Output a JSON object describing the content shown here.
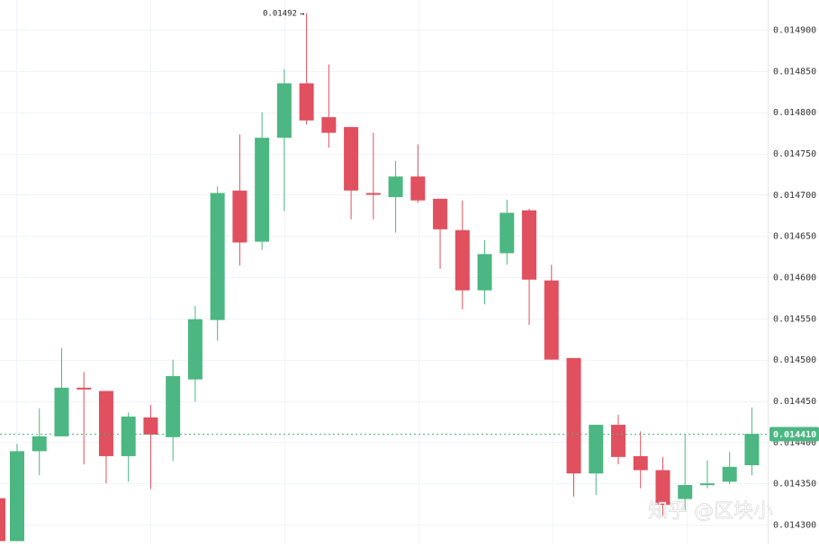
{
  "chart_data": {
    "type": "candlestick",
    "ylim": [
      0.01428,
      0.01492
    ],
    "y_ticks": [
      "0.014900",
      "0.014850",
      "0.014800",
      "0.014750",
      "0.014700",
      "0.014650",
      "0.014600",
      "0.014550",
      "0.014500",
      "0.014450",
      "0.014400",
      "0.014350",
      "0.014300"
    ],
    "candles": [
      {
        "o": 0.014332,
        "h": 0.014332,
        "l": 0.01428,
        "c": 0.01428
      },
      {
        "o": 0.01428,
        "h": 0.014398,
        "l": 0.01428,
        "c": 0.014389
      },
      {
        "o": 0.014389,
        "h": 0.014441,
        "l": 0.01436,
        "c": 0.014407
      },
      {
        "o": 0.014407,
        "h": 0.014514,
        "l": 0.014407,
        "c": 0.014466
      },
      {
        "o": 0.014466,
        "h": 0.014485,
        "l": 0.014373,
        "c": 0.014464
      },
      {
        "o": 0.014462,
        "h": 0.014462,
        "l": 0.01435,
        "c": 0.014383
      },
      {
        "o": 0.014383,
        "h": 0.014436,
        "l": 0.014352,
        "c": 0.014431
      },
      {
        "o": 0.01443,
        "h": 0.014445,
        "l": 0.014343,
        "c": 0.014409
      },
      {
        "o": 0.014406,
        "h": 0.0145,
        "l": 0.014377,
        "c": 0.01448
      },
      {
        "o": 0.014476,
        "h": 0.014565,
        "l": 0.014449,
        "c": 0.014549
      },
      {
        "o": 0.014548,
        "h": 0.01471,
        "l": 0.014523,
        "c": 0.014702
      },
      {
        "o": 0.014705,
        "h": 0.014773,
        "l": 0.014614,
        "c": 0.014642
      },
      {
        "o": 0.014643,
        "h": 0.0148,
        "l": 0.014633,
        "c": 0.014769
      },
      {
        "o": 0.014769,
        "h": 0.014852,
        "l": 0.01468,
        "c": 0.014835
      },
      {
        "o": 0.014835,
        "h": 0.01492,
        "l": 0.014785,
        "c": 0.01479
      },
      {
        "o": 0.014794,
        "h": 0.014858,
        "l": 0.014757,
        "c": 0.014775
      },
      {
        "o": 0.014782,
        "h": 0.014782,
        "l": 0.01467,
        "c": 0.014705
      },
      {
        "o": 0.014702,
        "h": 0.014775,
        "l": 0.01467,
        "c": 0.0147
      },
      {
        "o": 0.014697,
        "h": 0.014741,
        "l": 0.014654,
        "c": 0.014722
      },
      {
        "o": 0.014722,
        "h": 0.014761,
        "l": 0.01469,
        "c": 0.014693
      },
      {
        "o": 0.014695,
        "h": 0.014695,
        "l": 0.01461,
        "c": 0.014658
      },
      {
        "o": 0.014657,
        "h": 0.014693,
        "l": 0.014561,
        "c": 0.014584
      },
      {
        "o": 0.014584,
        "h": 0.014645,
        "l": 0.014567,
        "c": 0.014628
      },
      {
        "o": 0.014629,
        "h": 0.014694,
        "l": 0.014615,
        "c": 0.014678
      },
      {
        "o": 0.014681,
        "h": 0.014683,
        "l": 0.014542,
        "c": 0.014597
      },
      {
        "o": 0.014596,
        "h": 0.014615,
        "l": 0.0145,
        "c": 0.0145
      },
      {
        "o": 0.014502,
        "h": 0.014502,
        "l": 0.014334,
        "c": 0.014362
      },
      {
        "o": 0.014362,
        "h": 0.014421,
        "l": 0.014336,
        "c": 0.014421
      },
      {
        "o": 0.014421,
        "h": 0.014433,
        "l": 0.014373,
        "c": 0.014382
      },
      {
        "o": 0.014383,
        "h": 0.014413,
        "l": 0.014344,
        "c": 0.014366
      },
      {
        "o": 0.014366,
        "h": 0.014382,
        "l": 0.01431,
        "c": 0.014324
      },
      {
        "o": 0.014331,
        "h": 0.01441,
        "l": 0.014318,
        "c": 0.014348
      },
      {
        "o": 0.014349,
        "h": 0.014378,
        "l": 0.014344,
        "c": 0.01435
      },
      {
        "o": 0.014352,
        "h": 0.014388,
        "l": 0.014349,
        "c": 0.01437
      },
      {
        "o": 0.014372,
        "h": 0.014442,
        "l": 0.01436,
        "c": 0.01441
      }
    ],
    "up_color": "#4cb782",
    "down_color": "#e0505f",
    "last_price": 0.01441,
    "last_price_label": "0.014410",
    "high_marker": {
      "value": 0.01492,
      "candle_index": 14,
      "label": "0.01492"
    },
    "grid": true
  },
  "watermark": "知乎 @区块小"
}
